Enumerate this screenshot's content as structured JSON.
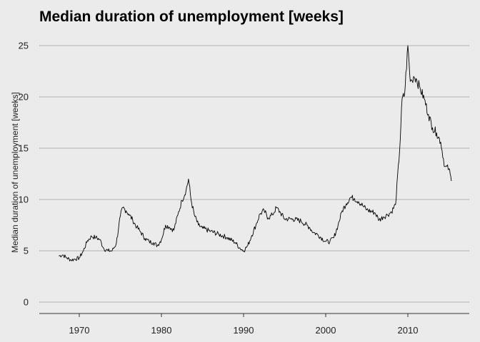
{
  "chart_data": {
    "type": "line",
    "title": "Median duration of unemployment [weeks]",
    "xlabel": "",
    "ylabel": "Median duration of unemployment [weeks]",
    "xlim": [
      1967.5,
      2015.3
    ],
    "ylim": [
      0,
      25
    ],
    "x_ticks": [
      1970,
      1980,
      1990,
      2000,
      2010
    ],
    "y_ticks": [
      0,
      5,
      10,
      15,
      20,
      25
    ],
    "grid": "horizontal",
    "legend": "none",
    "colors": {
      "background": "#ebebeb",
      "gridline": "#c4c4c4",
      "series": "#000000"
    },
    "series": [
      {
        "x": [
          1967.5,
          1968.0,
          1968.5,
          1969.0,
          1969.5,
          1970.0,
          1970.5,
          1971.0,
          1971.5,
          1972.0,
          1972.5,
          1973.0,
          1973.5,
          1974.0,
          1974.5,
          1975.0,
          1975.3,
          1975.7,
          1976.0,
          1976.5,
          1977.0,
          1977.5,
          1978.0,
          1978.5,
          1979.0,
          1979.5,
          1980.0,
          1980.5,
          1981.0,
          1981.5,
          1982.0,
          1982.5,
          1983.0,
          1983.3,
          1983.6,
          1984.0,
          1984.5,
          1985.0,
          1986.0,
          1987.0,
          1988.0,
          1989.0,
          1989.5,
          1990.0,
          1990.5,
          1991.0,
          1991.5,
          1992.0,
          1992.5,
          1993.0,
          1993.5,
          1994.0,
          1994.5,
          1995.0,
          1996.0,
          1997.0,
          1998.0,
          1998.5,
          1999.0,
          2000.0,
          2000.5,
          2001.0,
          2001.5,
          2002.0,
          2002.5,
          2003.0,
          2003.5,
          2004.0,
          2004.5,
          2005.0,
          2006.0,
          2006.5,
          2007.0,
          2007.5,
          2008.0,
          2008.5,
          2009.0,
          2009.3,
          2009.6,
          2010.0,
          2010.3,
          2010.5,
          2010.7,
          2011.0,
          2011.5,
          2012.0,
          2012.5,
          2013.0,
          2013.5,
          2014.0,
          2014.5,
          2015.0,
          2015.3
        ],
        "y": [
          4.5,
          4.6,
          4.3,
          4.1,
          4.2,
          4.3,
          5.0,
          6.0,
          6.4,
          6.3,
          6.1,
          5.2,
          5.0,
          5.0,
          5.7,
          8.4,
          9.2,
          8.9,
          8.6,
          8.0,
          7.3,
          6.8,
          6.2,
          5.9,
          5.8,
          5.5,
          6.1,
          7.5,
          7.3,
          7.0,
          8.5,
          9.9,
          10.9,
          12.0,
          10.0,
          8.5,
          7.5,
          7.2,
          6.9,
          6.6,
          6.3,
          5.8,
          5.3,
          5.0,
          5.5,
          6.5,
          7.5,
          8.6,
          8.9,
          8.2,
          8.5,
          9.2,
          8.7,
          8.1,
          8.1,
          7.9,
          7.3,
          6.8,
          6.6,
          5.9,
          5.9,
          6.3,
          7.5,
          8.9,
          9.6,
          10.2,
          10.1,
          9.8,
          9.4,
          9.0,
          8.7,
          8.0,
          8.3,
          8.5,
          8.8,
          9.5,
          14.8,
          19.8,
          20.2,
          25.0,
          21.5,
          21.6,
          22.0,
          21.8,
          20.8,
          19.8,
          18.3,
          17.0,
          16.5,
          15.6,
          13.2,
          13.0,
          11.8
        ]
      }
    ]
  }
}
